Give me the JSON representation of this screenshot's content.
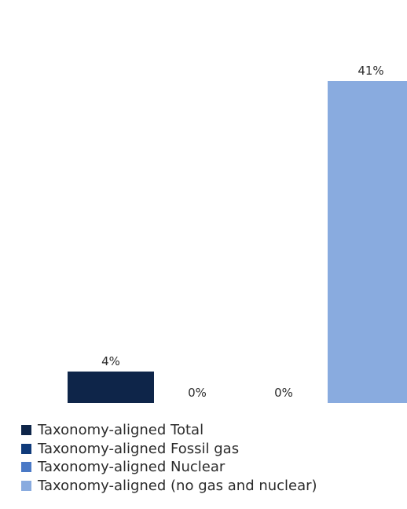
{
  "chart_data": {
    "type": "bar",
    "categories": [
      "Taxonomy-aligned Total",
      "Taxonomy-aligned Fossil gas",
      "Taxonomy-aligned Nuclear",
      "Taxonomy-aligned (no gas and nuclear)"
    ],
    "values": [
      4,
      0,
      0,
      41
    ],
    "value_labels": [
      "4%",
      "0%",
      "0%",
      "41%"
    ],
    "colors": [
      "#0e2549",
      "#0f3a7a",
      "#4a79c6",
      "#89abdf"
    ],
    "ylim": [
      0,
      45
    ],
    "grid": false,
    "legend_position": "bottom-left"
  }
}
